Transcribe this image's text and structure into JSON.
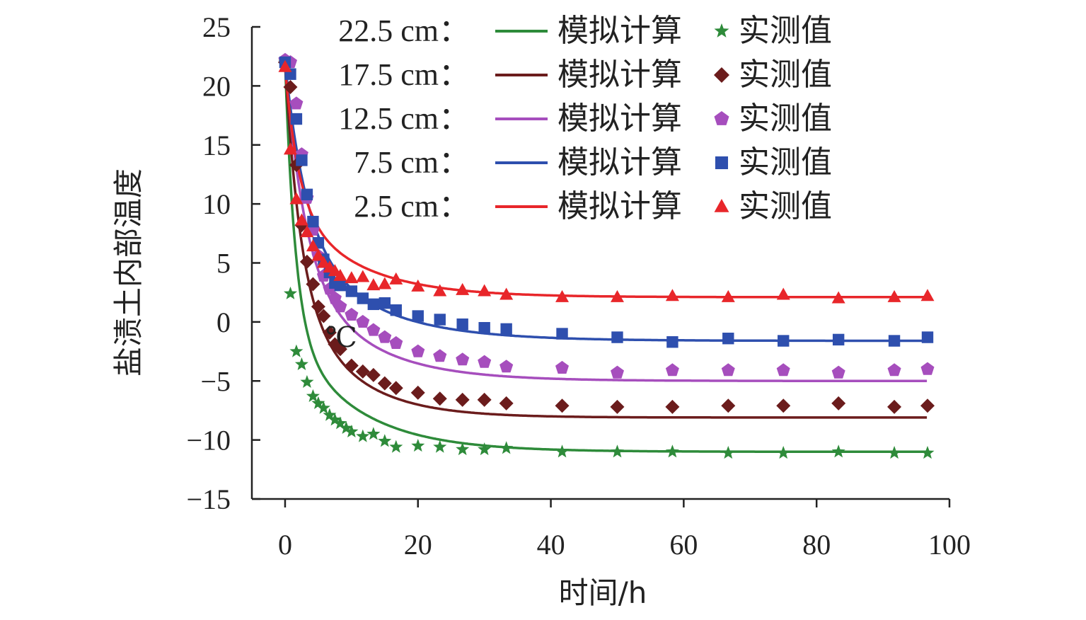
{
  "chart_data": {
    "type": "line",
    "title": "",
    "xlabel": "时间/h",
    "ylabel": "盐渍土内部温度",
    "annotation": "℃",
    "xlim": [
      -5,
      100
    ],
    "ylim": [
      -15,
      25
    ],
    "x_ticks": [
      0,
      20,
      40,
      60,
      80,
      100
    ],
    "y_ticks": [
      25,
      20,
      15,
      10,
      5,
      0,
      -5,
      -10,
      -15
    ],
    "x_tick_labels": [
      "0",
      "20",
      "40",
      "60",
      "80",
      "100"
    ],
    "y_tick_labels": [
      "25",
      "20",
      "15",
      "10",
      "5",
      "0",
      "−5",
      "−10",
      "−15"
    ],
    "legend_position": "top-right",
    "line_label": "模拟计算",
    "marker_label": "实测值",
    "series": [
      {
        "name": "22.5 cm：",
        "color": "#2e8b3a",
        "marker": "star",
        "fit": {
          "start": 22,
          "end": -11,
          "rate": 0.65,
          "sfactor": 0.68,
          "slow_rate": 0.1
        },
        "measured_x": [
          0,
          0.8,
          1.7,
          2.5,
          3.3,
          4.2,
          5,
          5.8,
          6.7,
          7.5,
          8.3,
          9.2,
          10,
          11.7,
          13.3,
          15,
          16.7,
          20,
          23.3,
          26.7,
          30,
          33.3,
          41.7,
          50,
          58.3,
          66.7,
          75,
          83.3,
          91.7,
          96.7
        ],
        "measured_y": [
          22,
          2.4,
          -2.5,
          -3.6,
          -5.1,
          -6.3,
          -6.9,
          -7.3,
          -7.9,
          -8.3,
          -8.6,
          -9.0,
          -9.3,
          -9.7,
          -9.5,
          -10.1,
          -10.6,
          -10.5,
          -10.6,
          -10.8,
          -10.8,
          -10.7,
          -11.0,
          -11.0,
          -11.0,
          -11.1,
          -11.1,
          -11.0,
          -11.1,
          -11.1
        ]
      },
      {
        "name": "17.5 cm：",
        "color": "#6b1c1c",
        "marker": "diamond",
        "fit": {
          "start": 22,
          "end": -8.1,
          "rate": 0.45,
          "sfactor": 0.6,
          "slow_rate": 0.12
        },
        "measured_x": [
          0,
          0.8,
          1.7,
          2.5,
          3.3,
          4.2,
          5,
          5.8,
          6.7,
          7.5,
          8.3,
          10,
          11.7,
          13.3,
          15,
          16.7,
          20,
          23.3,
          26.7,
          30,
          33.3,
          41.7,
          50,
          58.3,
          66.7,
          75,
          83.3,
          91.7,
          96.7
        ],
        "measured_y": [
          22,
          19.9,
          13.3,
          8.2,
          5.1,
          3.2,
          1.3,
          0.5,
          -0.9,
          -1.9,
          -2.3,
          -3.7,
          -4.2,
          -4.5,
          -5.2,
          -5.6,
          -6.0,
          -6.5,
          -6.6,
          -6.6,
          -6.9,
          -7.1,
          -7.2,
          -7.2,
          -7.1,
          -7.1,
          -6.9,
          -7.2,
          -7.1
        ]
      },
      {
        "name": "12.5 cm：",
        "color": "#a64ebd",
        "marker": "pentagon",
        "fit": {
          "start": 22,
          "end": -5,
          "rate": 0.35,
          "sfactor": 0.6,
          "slow_rate": 0.1
        },
        "measured_x": [
          0,
          0.8,
          1.7,
          2.5,
          3.3,
          4.2,
          5,
          5.8,
          6.7,
          7.5,
          8.3,
          10,
          11.7,
          13.3,
          15,
          16.7,
          20,
          23.3,
          26.7,
          30,
          33.3,
          41.7,
          50,
          58.3,
          66.7,
          75,
          83.3,
          91.7,
          96.7
        ],
        "measured_y": [
          22.2,
          22,
          18.5,
          14.2,
          10.5,
          7.8,
          5.6,
          3.9,
          2.8,
          2.0,
          1.3,
          0.6,
          0,
          -0.7,
          -1.3,
          -1.8,
          -2.5,
          -2.9,
          -3.2,
          -3.4,
          -3.8,
          -3.9,
          -4.3,
          -4.1,
          -4.1,
          -4.1,
          -4.3,
          -4.1,
          -4.0
        ]
      },
      {
        "name": "7.5 cm：",
        "color": "#2e4fae",
        "marker": "square",
        "fit": {
          "start": 22,
          "end": -1.6,
          "rate": 0.32,
          "sfactor": 0.6,
          "slow_rate": 0.09
        },
        "measured_x": [
          0,
          0.8,
          1.7,
          2.5,
          3.3,
          4.2,
          5,
          5.8,
          6.7,
          7.5,
          8.3,
          10,
          11.7,
          13.3,
          15,
          16.7,
          20,
          23.3,
          26.7,
          30,
          33.3,
          41.7,
          50,
          58.3,
          66.7,
          75,
          83.3,
          91.7,
          96.7
        ],
        "measured_y": [
          22,
          21,
          17.2,
          13.7,
          10.8,
          8.5,
          6.7,
          5.3,
          4.2,
          3.3,
          3.1,
          2.6,
          2.0,
          1.5,
          1.6,
          1.0,
          0.5,
          0.2,
          -0.2,
          -0.5,
          -0.6,
          -1.0,
          -1.3,
          -1.7,
          -1.4,
          -1.6,
          -1.5,
          -1.6,
          -1.3
        ]
      },
      {
        "name": "2.5 cm：",
        "color": "#e8262a",
        "marker": "triangle",
        "fit": {
          "start": 21.6,
          "end": 2.1,
          "rate": 0.5,
          "sfactor": 0.58,
          "slow_rate": 0.1
        },
        "measured_x": [
          0,
          0.8,
          1.7,
          2.5,
          3.3,
          4.2,
          5,
          5.8,
          6.7,
          7.5,
          8.3,
          10,
          11.7,
          13.3,
          15,
          16.7,
          20,
          23.3,
          26.7,
          30,
          33.3,
          41.7,
          50,
          58.3,
          66.7,
          75,
          83.3,
          91.7,
          96.7
        ],
        "measured_y": [
          21.6,
          14.6,
          10.4,
          8.6,
          7.6,
          6.4,
          5.6,
          5.0,
          4.6,
          4.3,
          3.9,
          3.7,
          3.8,
          3.1,
          3.2,
          3.6,
          3.0,
          2.6,
          2.7,
          2.6,
          2.3,
          2.1,
          2.1,
          2.2,
          2.1,
          2.3,
          2.0,
          2.1,
          2.2
        ]
      }
    ]
  }
}
